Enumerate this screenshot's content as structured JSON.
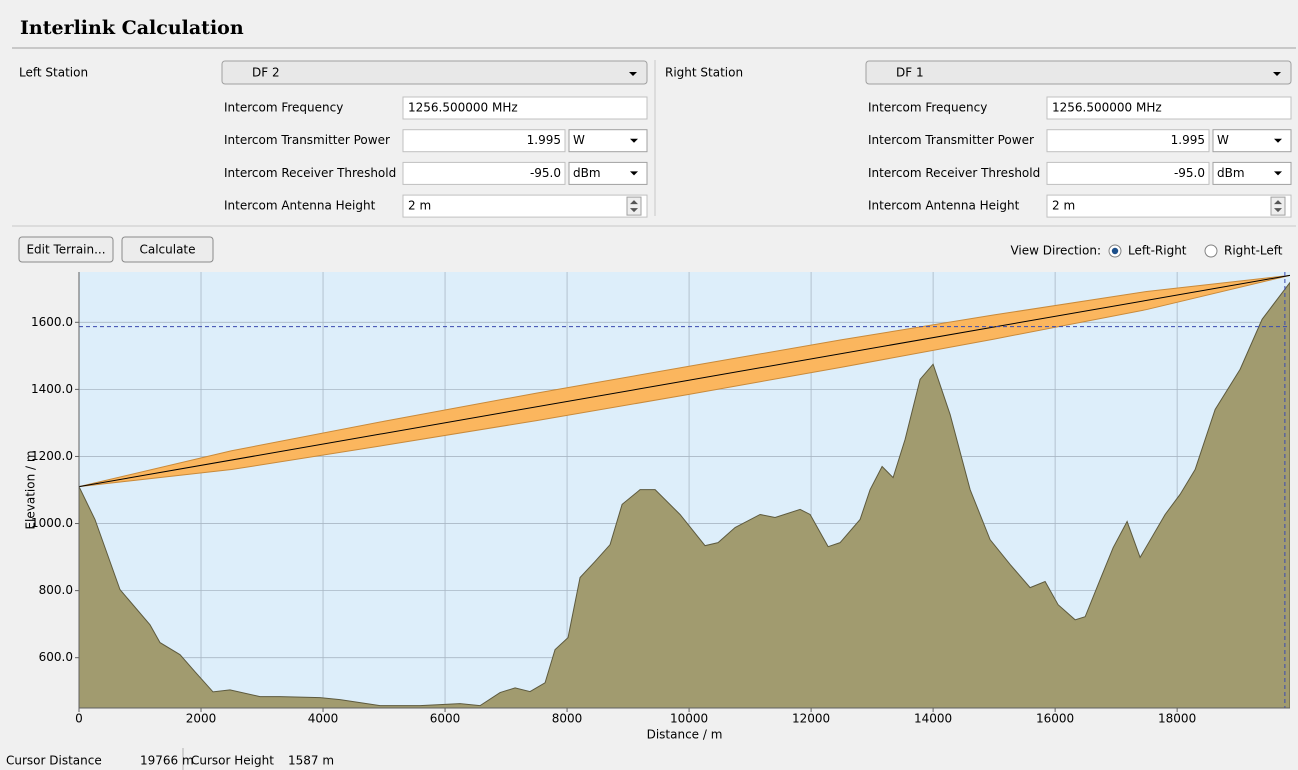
{
  "header": {
    "title": "Interlink Calculation"
  },
  "left_station": {
    "label": "Left Station",
    "station": "DF 2",
    "fields": [
      {
        "label": "Intercom Frequency",
        "value": "1256.500000 MHz"
      },
      {
        "label": "Intercom Transmitter Power",
        "value": "1.995",
        "unit": "W"
      },
      {
        "label": "Intercom Receiver Threshold",
        "value": "-95.0",
        "unit": "dBm"
      },
      {
        "label": "Intercom Antenna Height",
        "value": "2 m"
      }
    ]
  },
  "right_station": {
    "label": "Right Station",
    "station": "DF 1",
    "fields": [
      {
        "label": "Intercom Frequency",
        "value": "1256.500000 MHz"
      },
      {
        "label": "Intercom Transmitter Power",
        "value": "1.995",
        "unit": "W"
      },
      {
        "label": "Intercom Receiver Threshold",
        "value": "-95.0",
        "unit": "dBm"
      },
      {
        "label": "Intercom Antenna Height",
        "value": "2 m"
      }
    ]
  },
  "toolbar": {
    "buttons": [
      "Edit Terrain...",
      "Calculate"
    ],
    "view_direction": {
      "label": "View Direction:",
      "options": [
        "Left-Right",
        "Right-Left"
      ],
      "selected": 0
    }
  },
  "chart_data": {
    "type": "area",
    "xlabel": "Distance / m",
    "ylabel": "Elevation / m",
    "xlim": [
      0,
      19850
    ],
    "ylim": [
      450,
      1750
    ],
    "xticks": [
      0,
      2000,
      4000,
      6000,
      8000,
      10000,
      12000,
      14000,
      16000,
      18000
    ],
    "yticks": [
      {
        "value": 600,
        "label": "600.0"
      },
      {
        "value": 800,
        "label": "800.0"
      },
      {
        "value": 1000,
        "label": "1000.0"
      },
      {
        "value": 1200,
        "label": "1200.0"
      },
      {
        "value": 1400,
        "label": "1400.0"
      },
      {
        "value": 1600,
        "label": "1600.0"
      }
    ],
    "grid": true,
    "terrain": {
      "color": "#a19b6f",
      "x": [
        0,
        262,
        672,
        1164,
        1328,
        1656,
        1902,
        2197,
        2475,
        2967,
        3295,
        3951,
        4279,
        4934,
        5590,
        6246,
        6574,
        6902,
        7148,
        7393,
        7639,
        7803,
        8016,
        8213,
        8459,
        8705,
        8902,
        9197,
        9443,
        9852,
        10262,
        10475,
        10754,
        11164,
        11410,
        11820,
        11984,
        12279,
        12475,
        12803,
        12967,
        13164,
        13344,
        13541,
        13787,
        14000,
        14279,
        14607,
        14934,
        15262,
        15590,
        15836,
        16049,
        16328,
        16492,
        16738,
        16951,
        17180,
        17393,
        17803,
        18049,
        18295,
        18623,
        19033,
        19393,
        19850
      ],
      "values": [
        1110,
        1012,
        803,
        698,
        645,
        609,
        558,
        498,
        504,
        484,
        484,
        481,
        475,
        457,
        457,
        463,
        457,
        496,
        510,
        499,
        525,
        624,
        660,
        839,
        887,
        937,
        1057,
        1101,
        1101,
        1027,
        934,
        943,
        988,
        1027,
        1018,
        1042,
        1027,
        931,
        943,
        1012,
        1101,
        1170,
        1137,
        1251,
        1430,
        1475,
        1325,
        1101,
        952,
        878,
        809,
        827,
        758,
        713,
        722,
        833,
        928,
        1006,
        899,
        1027,
        1087,
        1161,
        1340,
        1460,
        1609,
        1719
      ]
    },
    "link": {
      "color": "#000000",
      "x": [
        0,
        19850
      ],
      "values": [
        1110,
        1740
      ]
    },
    "fresnel": {
      "color": "#fbb65e",
      "x": [
        0,
        2500,
        5000,
        7500,
        10000,
        12500,
        15000,
        17500,
        19850
      ],
      "upper": [
        1110,
        1217,
        1305,
        1389,
        1469,
        1548,
        1622,
        1692,
        1740
      ],
      "lower": [
        1110,
        1161,
        1233,
        1307,
        1385,
        1466,
        1550,
        1638,
        1740
      ]
    },
    "cursor": {
      "x": 19766,
      "y": 1587
    }
  },
  "status": [
    {
      "label": "Cursor Distance",
      "value": "19766 m"
    },
    {
      "label": "Cursor Height",
      "value": "1587 m"
    }
  ]
}
